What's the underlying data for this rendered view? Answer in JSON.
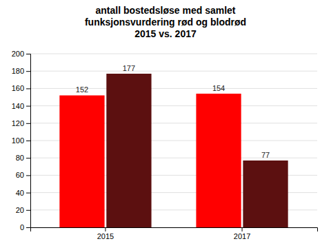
{
  "chart_data": {
    "type": "bar",
    "title": "antall bostedsløse med samlet\nfunksjonsvurdering rød og blodrød\n2015 vs. 2017",
    "categories": [
      "2015",
      "2017"
    ],
    "series": [
      {
        "color": "#FF0000",
        "values": [
          152,
          154
        ]
      },
      {
        "color": "#5C1010",
        "values": [
          177,
          77
        ]
      }
    ],
    "ylim": [
      0,
      200
    ],
    "yticks": [
      0,
      20,
      40,
      60,
      80,
      100,
      120,
      140,
      160,
      180,
      200
    ],
    "grid": true,
    "data_labels": true
  }
}
